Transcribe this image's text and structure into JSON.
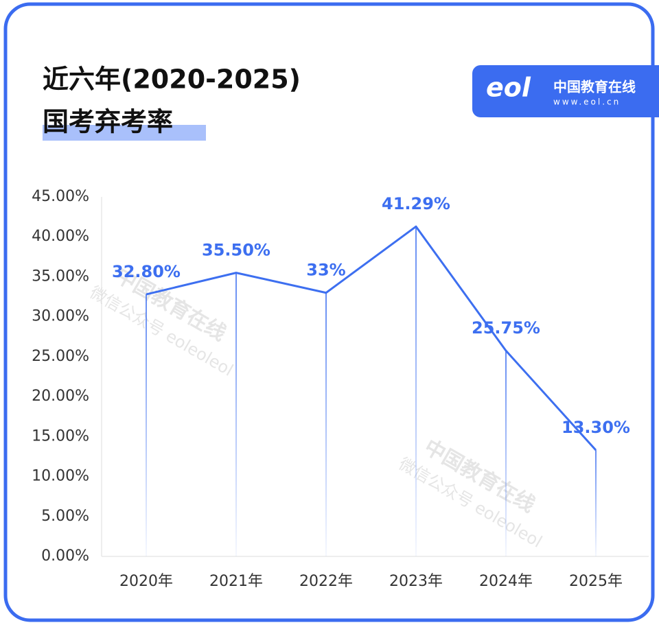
{
  "title_line1": "近六年(2020-2025)",
  "title_line2": "国考弃考率",
  "logo": {
    "mark": "eol",
    "name": "中国教育在线",
    "url": "www.eol.cn"
  },
  "watermark": {
    "name": "中国教育在线",
    "sub": "微信公众号 eoleoleol"
  },
  "chart_data": {
    "type": "line",
    "categories": [
      "2020年",
      "2021年",
      "2022年",
      "2023年",
      "2024年",
      "2025年"
    ],
    "series": [
      {
        "color": "#3d6ff0",
        "values": [
          32.8,
          35.5,
          33,
          41.29,
          25.75,
          13.3
        ],
        "value_labels": [
          "32.80%",
          "35.50%",
          "33%",
          "41.29%",
          "25.75%",
          "13.30%"
        ]
      }
    ],
    "ylim": [
      0,
      45
    ],
    "yticks": [
      {
        "value": 0,
        "label": "0.00%"
      },
      {
        "value": 5,
        "label": "5.00%"
      },
      {
        "value": 10,
        "label": "10.00%"
      },
      {
        "value": 15,
        "label": "15.00%"
      },
      {
        "value": 20,
        "label": "20.00%"
      },
      {
        "value": 25,
        "label": "25.00%"
      },
      {
        "value": 30,
        "label": "30.00%"
      },
      {
        "value": 35,
        "label": "35.00%"
      },
      {
        "value": 40,
        "label": "40.00%"
      },
      {
        "value": 45,
        "label": "45.00%"
      }
    ]
  }
}
